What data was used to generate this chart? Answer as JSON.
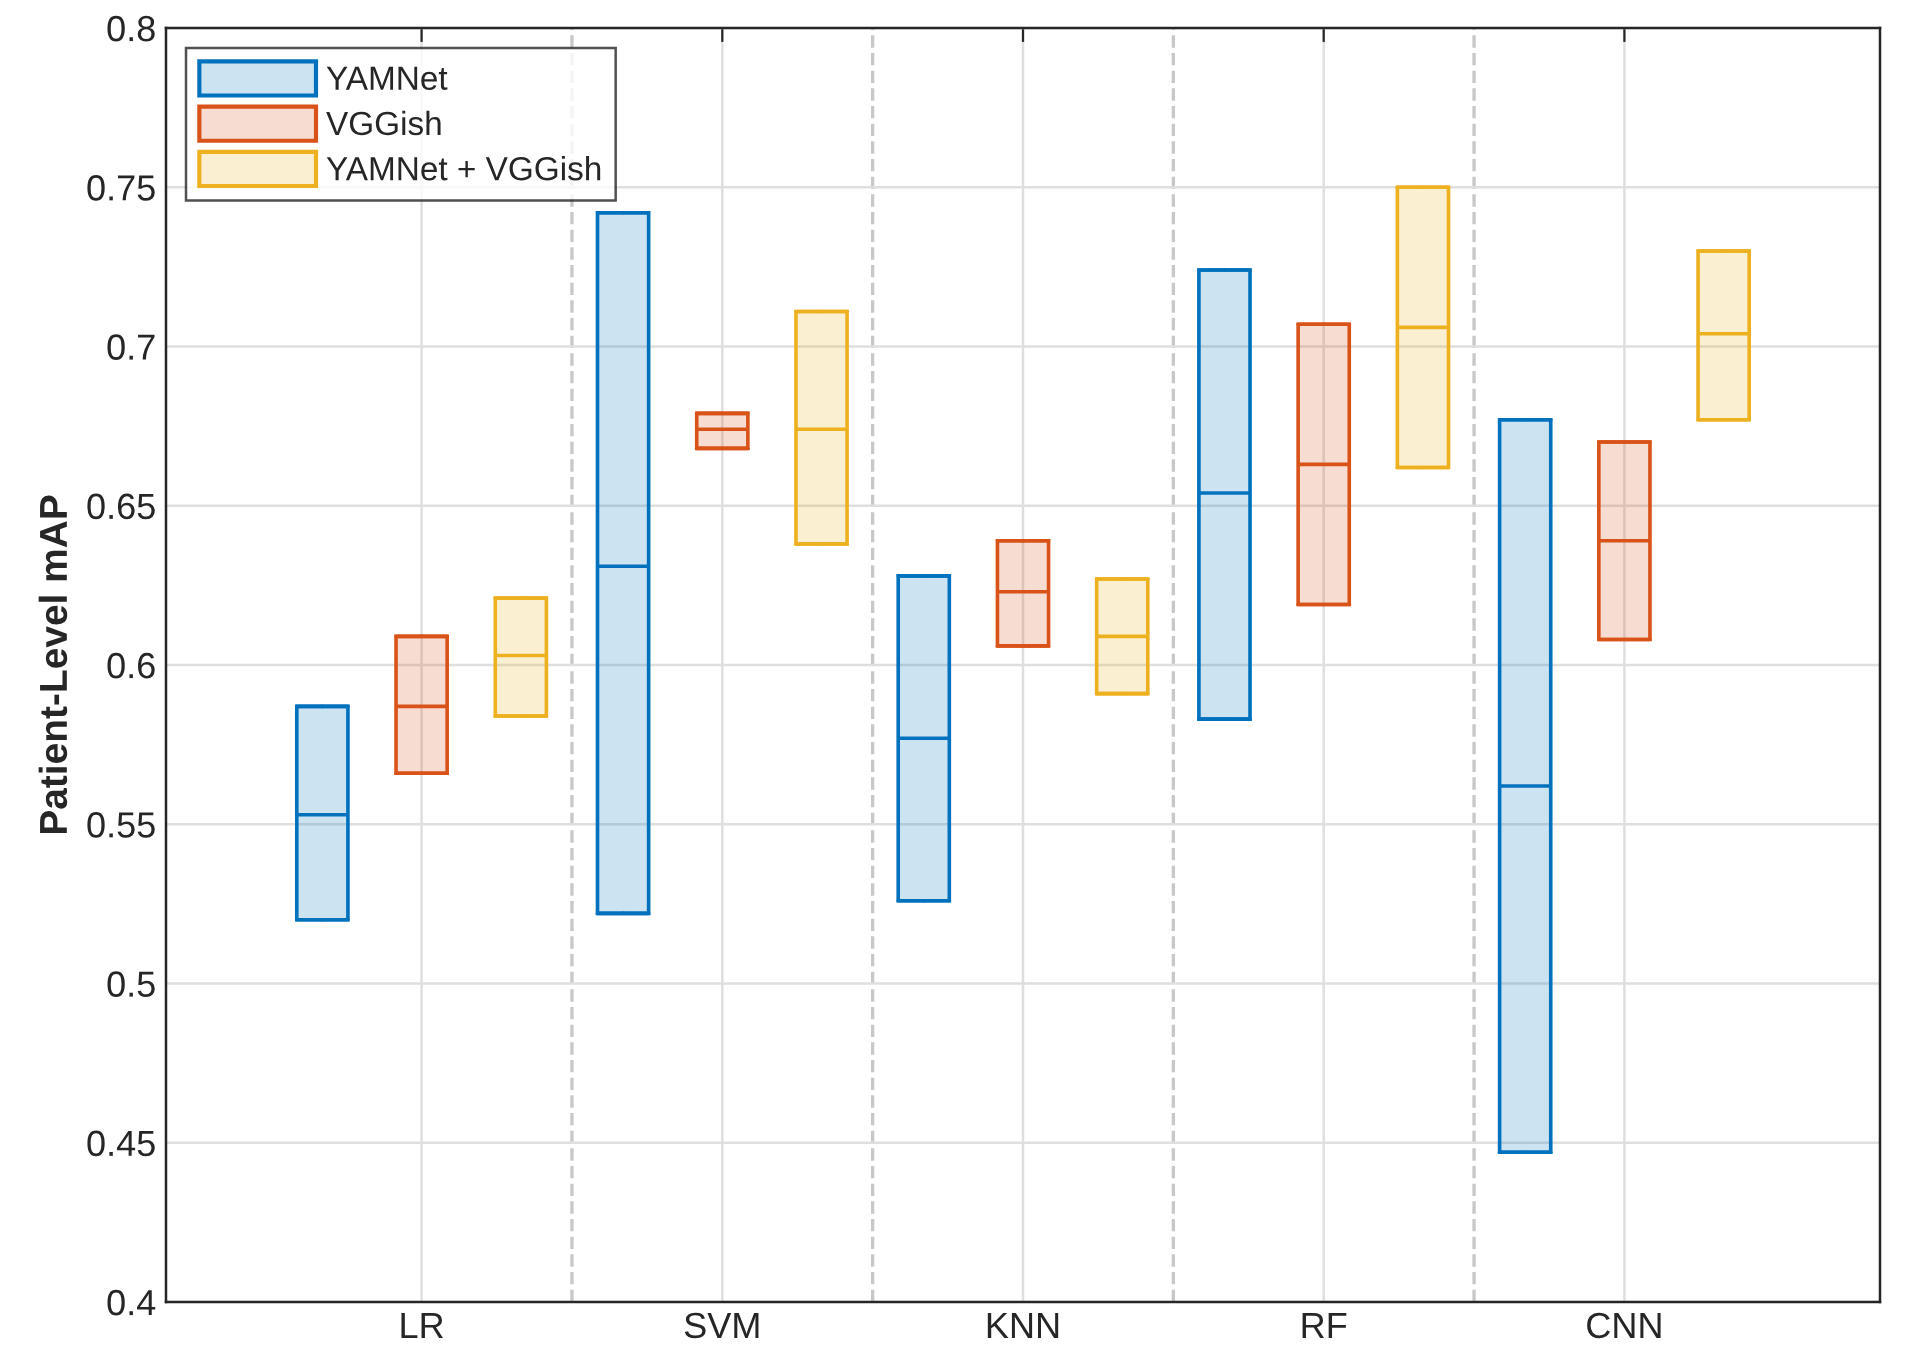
{
  "chart_data": {
    "type": "box",
    "ylabel": "Patient-Level mAP",
    "categories": [
      "LR",
      "SVM",
      "KNN",
      "RF",
      "CNN"
    ],
    "ylim": [
      0.4,
      0.8
    ],
    "yticks": [
      0.4,
      0.45,
      0.5,
      0.55,
      0.6,
      0.65,
      0.7,
      0.75,
      0.8
    ],
    "grid": true,
    "legend": "top left",
    "series": [
      {
        "name": "YAMNet",
        "color": "#0072bd",
        "boxes": [
          {
            "low": 0.52,
            "q1": 0.52,
            "median": 0.553,
            "q3": 0.587,
            "high": 0.587
          },
          {
            "low": 0.522,
            "q1": 0.522,
            "median": 0.631,
            "q3": 0.742,
            "high": 0.742
          },
          {
            "low": 0.526,
            "q1": 0.526,
            "median": 0.577,
            "q3": 0.628,
            "high": 0.628
          },
          {
            "low": 0.583,
            "q1": 0.583,
            "median": 0.654,
            "q3": 0.724,
            "high": 0.724
          },
          {
            "low": 0.447,
            "q1": 0.447,
            "median": 0.562,
            "q3": 0.677,
            "high": 0.677
          }
        ]
      },
      {
        "name": "VGGish",
        "color": "#d95319",
        "boxes": [
          {
            "low": 0.566,
            "q1": 0.566,
            "median": 0.587,
            "q3": 0.609,
            "high": 0.609
          },
          {
            "low": 0.668,
            "q1": 0.668,
            "median": 0.674,
            "q3": 0.679,
            "high": 0.679
          },
          {
            "low": 0.606,
            "q1": 0.606,
            "median": 0.623,
            "q3": 0.639,
            "high": 0.639
          },
          {
            "low": 0.619,
            "q1": 0.619,
            "median": 0.663,
            "q3": 0.707,
            "high": 0.707
          },
          {
            "low": 0.608,
            "q1": 0.608,
            "median": 0.639,
            "q3": 0.67,
            "high": 0.67
          }
        ]
      },
      {
        "name": "YAMNet + VGGish",
        "color": "#edb120",
        "boxes": [
          {
            "low": 0.584,
            "q1": 0.584,
            "median": 0.603,
            "q3": 0.621,
            "high": 0.621
          },
          {
            "low": 0.638,
            "q1": 0.638,
            "median": 0.674,
            "q3": 0.711,
            "high": 0.711
          },
          {
            "low": 0.591,
            "q1": 0.591,
            "median": 0.609,
            "q3": 0.627,
            "high": 0.627
          },
          {
            "low": 0.662,
            "q1": 0.662,
            "median": 0.706,
            "q3": 0.75,
            "high": 0.75
          },
          {
            "low": 0.677,
            "q1": 0.677,
            "median": 0.704,
            "q3": 0.73,
            "high": 0.73
          }
        ]
      }
    ]
  }
}
